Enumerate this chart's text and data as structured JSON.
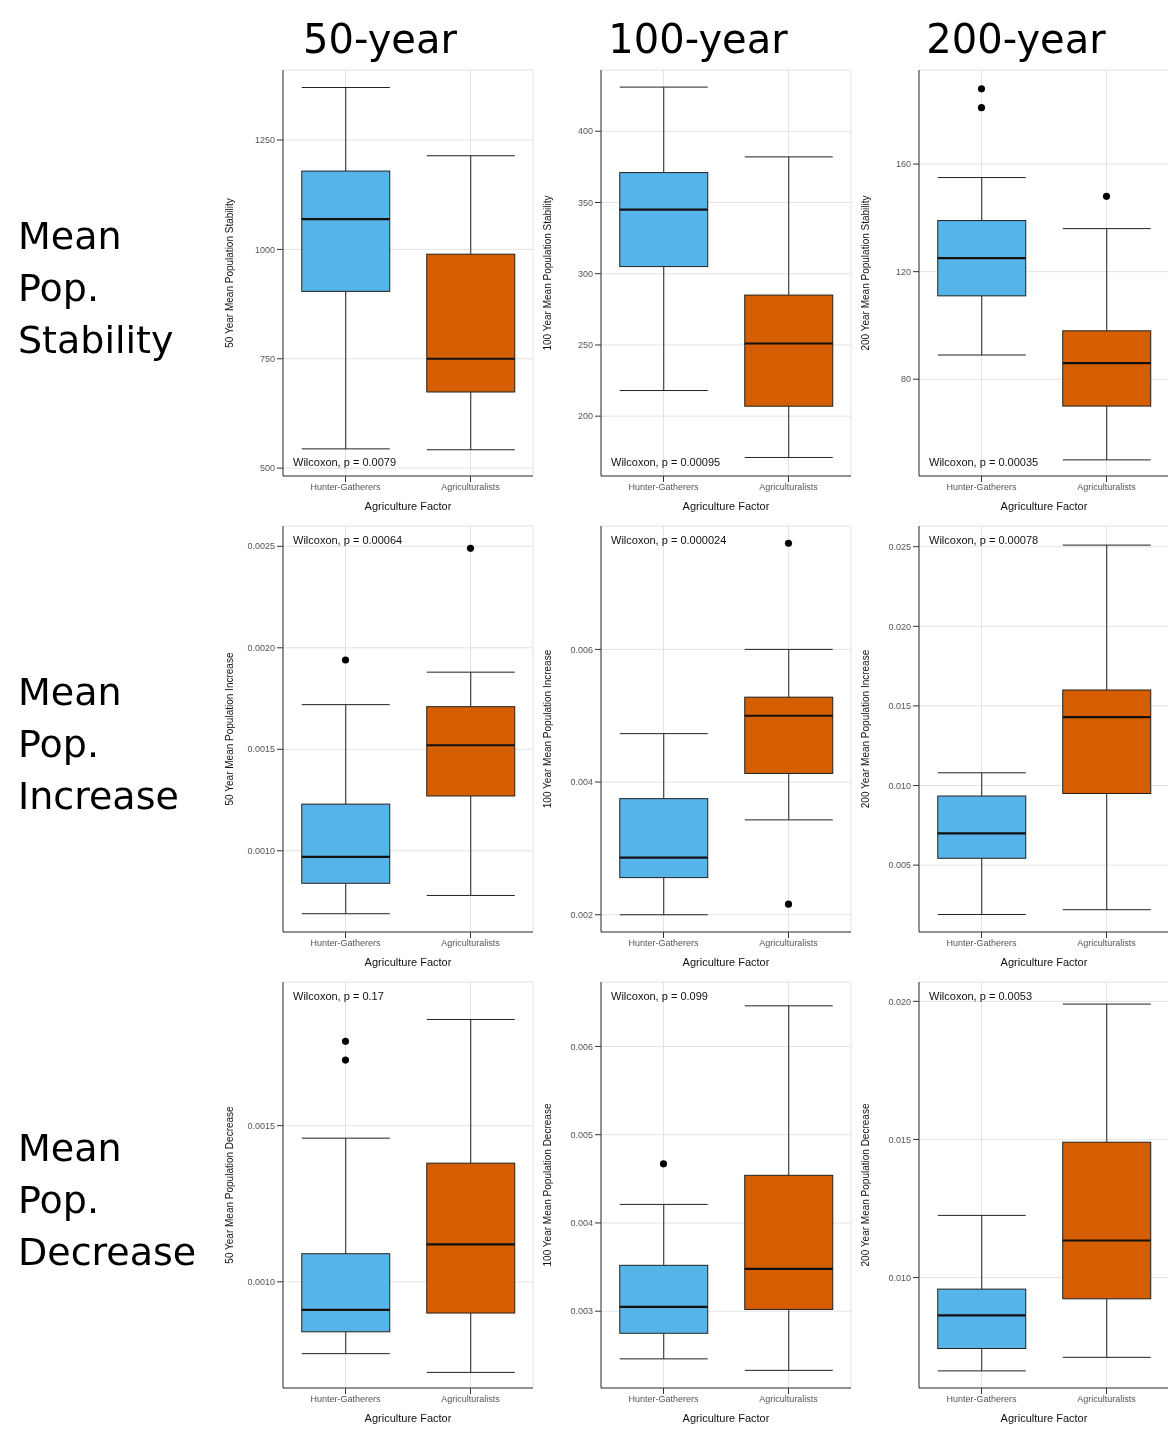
{
  "chart_data": [
    {
      "type": "box",
      "title": "50-year",
      "subtitle": "Mean Pop. Stability",
      "xlabel": "Agriculture Factor",
      "ylabel": "50 Year Mean Population Stability",
      "categories": [
        "Hunter-Gatherers",
        "Agriculturalists"
      ],
      "colors": [
        "#56b4e9",
        "#d55e00"
      ],
      "boxes": [
        {
          "low": 544,
          "q1": 904,
          "median": 1069,
          "q3": 1179,
          "high": 1370
        },
        {
          "low": 542,
          "q1": 674,
          "median": 750,
          "q3": 989,
          "high": 1214
        }
      ],
      "ylim": [
        482,
        1410
      ],
      "yticks": [
        500,
        750,
        1000,
        1250
      ],
      "grid": true,
      "annotations": [
        "Wilcoxon, p = 0.0079"
      ]
    },
    {
      "type": "box",
      "title": "100-year",
      "xlabel": "Agriculture Factor",
      "ylabel": "100 Year Mean Population Stability",
      "categories": [
        "Hunter-Gatherers",
        "Agriculturalists"
      ],
      "colors": [
        "#56b4e9",
        "#d55e00"
      ],
      "boxes": [
        {
          "low": 218,
          "q1": 305,
          "median": 345,
          "q3": 371,
          "high": 431
        },
        {
          "low": 171,
          "q1": 207,
          "median": 251,
          "q3": 285,
          "high": 382
        }
      ],
      "ylim": [
        158,
        443
      ],
      "yticks": [
        200,
        250,
        300,
        350,
        400
      ],
      "grid": true,
      "annotations": [
        "Wilcoxon, p = 0.00095"
      ]
    },
    {
      "type": "box",
      "title": "200-year",
      "xlabel": "Agriculture Factor",
      "ylabel": "200 Year Mean Population Stability",
      "categories": [
        "Hunter-Gatherers",
        "Agriculturalists"
      ],
      "colors": [
        "#56b4e9",
        "#d55e00"
      ],
      "boxes": [
        {
          "low": 89,
          "q1": 111,
          "median": 125,
          "q3": 139,
          "high": 155,
          "outliers": [
            188,
            181
          ]
        },
        {
          "low": 50,
          "q1": 70,
          "median": 86,
          "q3": 98,
          "high": 136,
          "outliers": [
            148
          ]
        }
      ],
      "ylim": [
        44,
        195
      ],
      "yticks": [
        80,
        120,
        160
      ],
      "grid": true,
      "marker": "circle",
      "annotations": [
        "Wilcoxon, p = 0.00035"
      ]
    },
    {
      "type": "box",
      "subtitle": "Mean Pop. Increase",
      "xlabel": "Agriculture Factor",
      "ylabel": "50 Year Mean Population Increase",
      "categories": [
        "Hunter-Gatherers",
        "Agriculturalists"
      ],
      "colors": [
        "#56b4e9",
        "#d55e00"
      ],
      "boxes": [
        {
          "low": 0.00069,
          "q1": 0.00084,
          "median": 0.00097,
          "q3": 0.00123,
          "high": 0.00172,
          "outliers": [
            0.00194
          ]
        },
        {
          "low": 0.00078,
          "q1": 0.00127,
          "median": 0.00152,
          "q3": 0.00171,
          "high": 0.00188,
          "outliers": [
            0.00249
          ]
        }
      ],
      "ylim": [
        0.0006,
        0.0026
      ],
      "yticks": [
        {
          "value": 0.001,
          "label": "0.0010"
        },
        0.0015,
        {
          "value": 0.002,
          "label": "0.0020"
        },
        0.0025
      ],
      "grid": true,
      "marker": "circle",
      "annotations": [
        "Wilcoxon, p = 0.00064"
      ]
    },
    {
      "type": "box",
      "xlabel": "Agriculture Factor",
      "ylabel": "100 Year Mean Population Increase",
      "categories": [
        "Hunter-Gatherers",
        "Agriculturalists"
      ],
      "colors": [
        "#56b4e9",
        "#d55e00"
      ],
      "boxes": [
        {
          "low": 0.002,
          "q1": 0.00256,
          "median": 0.00286,
          "q3": 0.00375,
          "high": 0.00473
        },
        {
          "low": 0.00343,
          "q1": 0.00413,
          "median": 0.005,
          "q3": 0.00528,
          "high": 0.006,
          "outliers": [
            0.0076,
            0.00216
          ]
        }
      ],
      "ylim": [
        0.00174,
        0.00786
      ],
      "yticks": [
        0.002,
        0.004,
        0.006
      ],
      "grid": true,
      "marker": "circle",
      "annotations": [
        "Wilcoxon, p = 0.000024"
      ]
    },
    {
      "type": "box",
      "xlabel": "Agriculture Factor",
      "ylabel": "200 Year Mean Population Increase",
      "categories": [
        "Hunter-Gatherers",
        "Agriculturalists"
      ],
      "colors": [
        "#56b4e9",
        "#d55e00"
      ],
      "boxes": [
        {
          "low": 0.0019,
          "q1": 0.00543,
          "median": 0.007,
          "q3": 0.00934,
          "high": 0.0108
        },
        {
          "low": 0.0022,
          "q1": 0.0095,
          "median": 0.0143,
          "q3": 0.016,
          "high": 0.0251
        }
      ],
      "ylim": [
        0.0008,
        0.0263
      ],
      "yticks": [
        0.005,
        {
          "value": 0.01,
          "label": "0.010"
        },
        0.015,
        {
          "value": 0.02,
          "label": "0.020"
        },
        0.025
      ],
      "grid": true,
      "annotations": [
        "Wilcoxon, p = 0.00078"
      ]
    },
    {
      "type": "box",
      "subtitle": "Mean Pop. Decrease",
      "xlabel": "Agriculture Factor",
      "ylabel": "50 Year Mean Population Decrease",
      "categories": [
        "Hunter-Gatherers",
        "Agriculturalists"
      ],
      "colors": [
        "#56b4e9",
        "#d55e00"
      ],
      "boxes": [
        {
          "low": 0.00077,
          "q1": 0.00084,
          "median": 0.00091,
          "q3": 0.00109,
          "high": 0.00146,
          "outliers": [
            0.00177,
            0.00171
          ]
        },
        {
          "low": 0.00071,
          "q1": 0.0009,
          "median": 0.00112,
          "q3": 0.00138,
          "high": 0.00184
        }
      ],
      "ylim": [
        0.00066,
        0.00196
      ],
      "yticks": [
        {
          "value": 0.001,
          "label": "0.0010"
        },
        0.0015
      ],
      "grid": true,
      "marker": "circle",
      "annotations": [
        "Wilcoxon, p = 0.17"
      ]
    },
    {
      "type": "box",
      "xlabel": "Agriculture Factor",
      "ylabel": "100 Year Mean Population Decrease",
      "categories": [
        "Hunter-Gatherers",
        "Agriculturalists"
      ],
      "colors": [
        "#56b4e9",
        "#d55e00"
      ],
      "boxes": [
        {
          "low": 0.00246,
          "q1": 0.00275,
          "median": 0.00305,
          "q3": 0.00352,
          "high": 0.00421,
          "outliers": [
            0.00467
          ]
        },
        {
          "low": 0.00233,
          "q1": 0.00302,
          "median": 0.00348,
          "q3": 0.00454,
          "high": 0.00646
        }
      ],
      "ylim": [
        0.00213,
        0.00673
      ],
      "yticks": [
        0.003,
        0.004,
        0.005,
        0.006
      ],
      "grid": true,
      "marker": "circle",
      "annotations": [
        "Wilcoxon, p = 0.099"
      ]
    },
    {
      "type": "box",
      "xlabel": "Agriculture Factor",
      "ylabel": "200 Year Mean Population Decrease",
      "categories": [
        "Hunter-Gatherers",
        "Agriculturalists"
      ],
      "colors": [
        "#56b4e9",
        "#d55e00"
      ],
      "boxes": [
        {
          "low": 0.00662,
          "q1": 0.00743,
          "median": 0.00863,
          "q3": 0.00958,
          "high": 0.01225
        },
        {
          "low": 0.00711,
          "q1": 0.00923,
          "median": 0.01134,
          "q3": 0.0149,
          "high": 0.0199
        }
      ],
      "ylim": [
        0.006,
        0.0207
      ],
      "yticks": [
        {
          "value": 0.01,
          "label": "0.010"
        },
        0.015,
        {
          "value": 0.02,
          "label": "0.020"
        }
      ],
      "grid": true,
      "annotations": [
        "Wilcoxon, p = 0.0053"
      ]
    }
  ]
}
